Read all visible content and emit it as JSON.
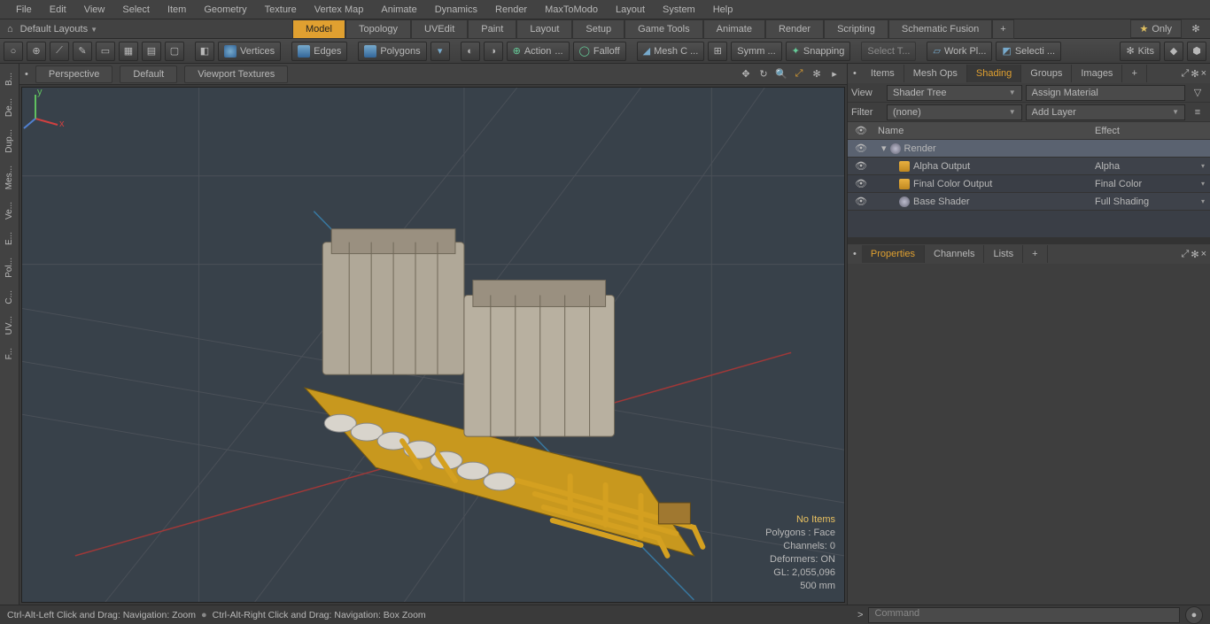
{
  "menubar": [
    "File",
    "Edit",
    "View",
    "Select",
    "Item",
    "Geometry",
    "Texture",
    "Vertex Map",
    "Animate",
    "Dynamics",
    "Render",
    "MaxToModo",
    "Layout",
    "System",
    "Help"
  ],
  "layout": {
    "default_label": "Default Layouts",
    "tabs": [
      "Model",
      "Topology",
      "UVEdit",
      "Paint",
      "Layout",
      "Setup",
      "Game Tools",
      "Animate",
      "Render",
      "Scripting",
      "Schematic Fusion"
    ],
    "active_tab": "Model",
    "only_label": "Only"
  },
  "toolbar": {
    "vertices": "Vertices",
    "edges": "Edges",
    "polygons": "Polygons",
    "action": "Action",
    "action_dots": "...",
    "falloff": "Falloff",
    "meshc": "Mesh C ...",
    "symm": "Symm ...",
    "snapping": "Snapping",
    "selectt": "Select T...",
    "workpl": "Work Pl...",
    "selecti": "Selecti ...",
    "kits": "Kits"
  },
  "viewport": {
    "tabs": [
      "Perspective",
      "Default",
      "Viewport Textures"
    ],
    "stats": {
      "noitems": "No Items",
      "polygons": "Polygons : Face",
      "channels": "Channels: 0",
      "deformers": "Deformers: ON",
      "gl": "GL: 2,055,096",
      "zoom": "500 mm"
    }
  },
  "leftdock": [
    "B...",
    "De...",
    "Dup...",
    "Mes...",
    "Ve...",
    "E...",
    "Pol...",
    "C...",
    "UV...",
    "F..."
  ],
  "rightpanel": {
    "tabs_top": [
      "Items",
      "Mesh Ops",
      "Shading",
      "Groups",
      "Images"
    ],
    "active_top": "Shading",
    "view_label": "View",
    "view_value": "Shader Tree",
    "assign": "Assign Material",
    "filter_label": "Filter",
    "filter_value": "(none)",
    "addlayer": "Add Layer",
    "header_name": "Name",
    "header_effect": "Effect",
    "tree": [
      {
        "name": "Render",
        "effect": "",
        "indent": 0,
        "icon": "sphere",
        "sel": true
      },
      {
        "name": "Alpha Output",
        "effect": "Alpha",
        "indent": 1,
        "icon": "out"
      },
      {
        "name": "Final Color Output",
        "effect": "Final Color",
        "indent": 1,
        "icon": "out"
      },
      {
        "name": "Base Shader",
        "effect": "Full Shading",
        "indent": 1,
        "icon": "sphere"
      }
    ],
    "tabs_bottom": [
      "Properties",
      "Channels",
      "Lists"
    ],
    "active_bottom": "Properties"
  },
  "statusbar": {
    "left1": "Ctrl-Alt-Left Click and Drag: Navigation: Zoom",
    "left2": "Ctrl-Alt-Right Click and Drag: Navigation: Box Zoom",
    "cmd_placeholder": "Command",
    "prompt": ">"
  }
}
